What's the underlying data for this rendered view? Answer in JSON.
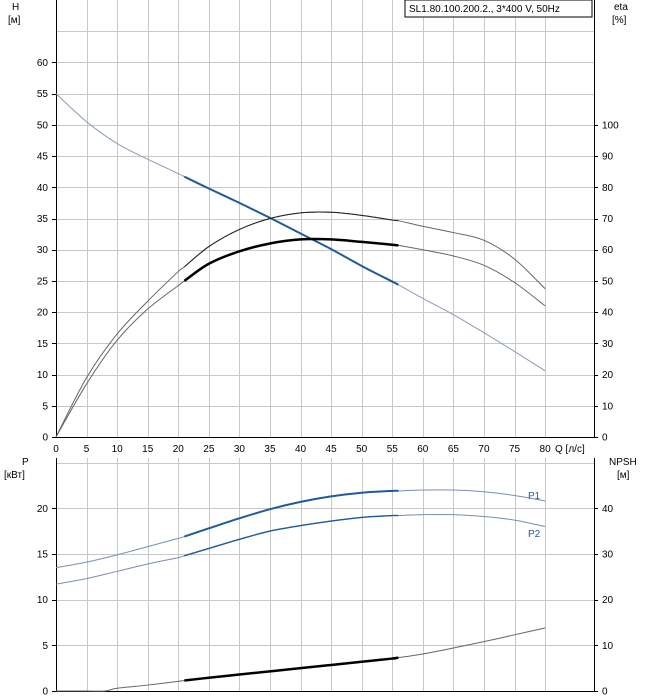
{
  "header": {
    "label": "SL1.80.100.200.2., 3*400 V, 50Hz"
  },
  "chart_data": [
    {
      "type": "line",
      "name": "head-efficiency",
      "y_left_label": [
        "H",
        "[м]"
      ],
      "y_right_label": [
        "eta",
        "[%]"
      ],
      "x_label": "Q [л/с]",
      "x_range": [
        0,
        88
      ],
      "y_left_range": [
        0,
        70
      ],
      "y_right_range": [
        0,
        140
      ],
      "x_ticks": [
        0,
        5,
        10,
        15,
        20,
        25,
        30,
        35,
        40,
        45,
        50,
        55,
        60,
        65,
        70,
        75,
        80
      ],
      "x_tick_labels": [
        "0",
        "5",
        "10",
        "15",
        "20",
        "25",
        "30",
        "35",
        "40",
        "45",
        "50",
        "55",
        "60",
        "65",
        "70",
        "75",
        "80"
      ],
      "y_left_ticks": [
        0,
        5,
        10,
        15,
        20,
        25,
        30,
        35,
        40,
        45,
        50,
        55,
        60
      ],
      "y_left_tick_labels": [
        "0",
        "5",
        "10",
        "15",
        "20",
        "25",
        "30",
        "35",
        "40",
        "45",
        "50",
        "55",
        "60"
      ],
      "y_right_ticks": [
        0,
        10,
        20,
        30,
        40,
        50,
        60,
        70,
        80,
        90,
        100
      ],
      "y_right_tick_labels": [
        "0",
        "10",
        "20",
        "30",
        "40",
        "50",
        "60",
        "70",
        "80",
        "90",
        "100"
      ],
      "grid": true,
      "series": [
        {
          "axis": "left",
          "color": "#8a9bb8",
          "width": 1,
          "x": [
            0,
            5,
            10,
            15,
            20,
            21,
            25,
            30,
            35,
            40,
            45,
            50,
            55,
            56,
            60,
            65,
            70,
            75,
            80
          ],
          "y": [
            55,
            50.5,
            47,
            44.5,
            42.2,
            41.7,
            39.8,
            37.5,
            35.1,
            32.6,
            30.1,
            27.4,
            24.9,
            24.4,
            22.2,
            19.6,
            16.7,
            13.7,
            10.6
          ]
        },
        {
          "axis": "left",
          "color": "#1f5a9a",
          "width": 2,
          "x": [
            21,
            25,
            30,
            35,
            40,
            45,
            50,
            55,
            56
          ],
          "y": [
            41.7,
            39.8,
            37.5,
            35.1,
            32.6,
            30.1,
            27.4,
            24.9,
            24.4
          ]
        },
        {
          "axis": "right",
          "color": "#666666",
          "width": 1,
          "x": [
            0,
            5,
            10,
            15,
            20,
            21,
            25,
            30,
            35,
            40,
            45,
            50,
            55,
            56,
            60,
            65,
            70,
            75,
            80
          ],
          "y": [
            0,
            19,
            33,
            43.5,
            53,
            54.5,
            61,
            66.5,
            70,
            71.8,
            72,
            71,
            69.5,
            69.3,
            67.5,
            65.5,
            63,
            57,
            47.5
          ]
        },
        {
          "axis": "right",
          "color": "#222222",
          "width": 1,
          "x": [
            21,
            25,
            30,
            35,
            40,
            45,
            50,
            55,
            56
          ],
          "y": [
            54.5,
            61,
            66.5,
            70,
            71.8,
            72,
            71,
            69.5,
            69.3
          ]
        },
        {
          "axis": "right",
          "color": "#666666",
          "width": 1,
          "x": [
            0,
            5,
            10,
            15,
            20,
            21,
            25,
            30,
            35,
            40,
            45,
            50,
            55,
            56,
            60,
            65,
            70,
            75,
            80
          ],
          "y": [
            0,
            17,
            31,
            41,
            48.5,
            50,
            55.5,
            59.5,
            62,
            63.3,
            63.3,
            62.5,
            61.6,
            61.4,
            60,
            58,
            55,
            49.5,
            42
          ]
        },
        {
          "axis": "right",
          "color": "#000000",
          "width": 2.5,
          "x": [
            21,
            25,
            30,
            35,
            40,
            45,
            50,
            55,
            56
          ],
          "y": [
            50,
            55.5,
            59.5,
            62,
            63.3,
            63.3,
            62.5,
            61.6,
            61.4
          ]
        }
      ]
    },
    {
      "type": "line",
      "name": "power-npsh",
      "y_left_label": [
        "P",
        "[кВт]"
      ],
      "y_right_label": [
        "NPSH",
        "[м]"
      ],
      "x_range": [
        0,
        88
      ],
      "y_left_range": [
        0,
        25.5
      ],
      "y_right_range": [
        0,
        51
      ],
      "x_ticks": [
        0,
        5,
        10,
        15,
        20,
        25,
        30,
        35,
        40,
        45,
        50,
        55,
        60,
        65,
        70,
        75,
        80
      ],
      "y_left_ticks": [
        0,
        5,
        10,
        15,
        20
      ],
      "y_left_tick_labels": [
        "0",
        "5",
        "10",
        "15",
        "20"
      ],
      "y_right_ticks": [
        0,
        10,
        20,
        30,
        40
      ],
      "y_right_tick_labels": [
        "0",
        "10",
        "20",
        "30",
        "40"
      ],
      "grid": true,
      "series_labels": [
        "P1",
        "P2"
      ],
      "series": [
        {
          "axis": "left",
          "color": "#7a8eb0",
          "width": 1,
          "x": [
            0,
            5,
            10,
            15,
            20,
            21,
            25,
            30,
            35,
            40,
            45,
            50,
            55,
            56,
            60,
            65,
            70,
            75,
            80
          ],
          "y": [
            13.5,
            14.1,
            14.9,
            15.8,
            16.7,
            16.9,
            17.8,
            18.9,
            19.9,
            20.7,
            21.3,
            21.7,
            21.9,
            21.9,
            22,
            22,
            21.8,
            21.4,
            20.8
          ]
        },
        {
          "axis": "left",
          "color": "#1f5a9a",
          "width": 2,
          "x": [
            21,
            25,
            30,
            35,
            40,
            45,
            50,
            55,
            56
          ],
          "y": [
            16.9,
            17.8,
            18.9,
            19.9,
            20.7,
            21.3,
            21.7,
            21.9,
            21.9
          ]
        },
        {
          "axis": "left",
          "color": "#7a8eb0",
          "width": 1,
          "x": [
            0,
            5,
            10,
            15,
            20,
            21,
            25,
            30,
            35,
            40,
            45,
            50,
            55,
            56,
            60,
            65,
            70,
            75,
            80
          ],
          "y": [
            11.7,
            12.3,
            13.1,
            13.9,
            14.6,
            14.8,
            15.6,
            16.6,
            17.5,
            18.1,
            18.6,
            19,
            19.2,
            19.2,
            19.3,
            19.3,
            19.1,
            18.7,
            18
          ]
        },
        {
          "axis": "left",
          "color": "#1f5a9a",
          "width": 1.4,
          "x": [
            21,
            25,
            30,
            35,
            40,
            45,
            50,
            55,
            56
          ],
          "y": [
            14.8,
            15.6,
            16.6,
            17.5,
            18.1,
            18.6,
            19,
            19.2,
            19.2
          ]
        },
        {
          "axis": "right",
          "color": "#666666",
          "width": 1,
          "x": [
            0,
            5,
            8,
            10,
            15,
            20,
            21,
            25,
            30,
            35,
            40,
            45,
            50,
            55,
            56,
            60,
            65,
            70,
            75,
            80
          ],
          "y": [
            0,
            0,
            0,
            0.6,
            1.3,
            2.1,
            2.3,
            2.9,
            3.6,
            4.3,
            5.0,
            5.7,
            6.4,
            7.1,
            7.3,
            8.1,
            9.4,
            10.8,
            12.3,
            13.8
          ]
        },
        {
          "axis": "right",
          "color": "#000000",
          "width": 2.5,
          "x": [
            21,
            25,
            30,
            35,
            40,
            45,
            50,
            55,
            56
          ],
          "y": [
            2.3,
            2.9,
            3.6,
            4.3,
            5.0,
            5.7,
            6.4,
            7.1,
            7.3
          ]
        }
      ]
    }
  ]
}
